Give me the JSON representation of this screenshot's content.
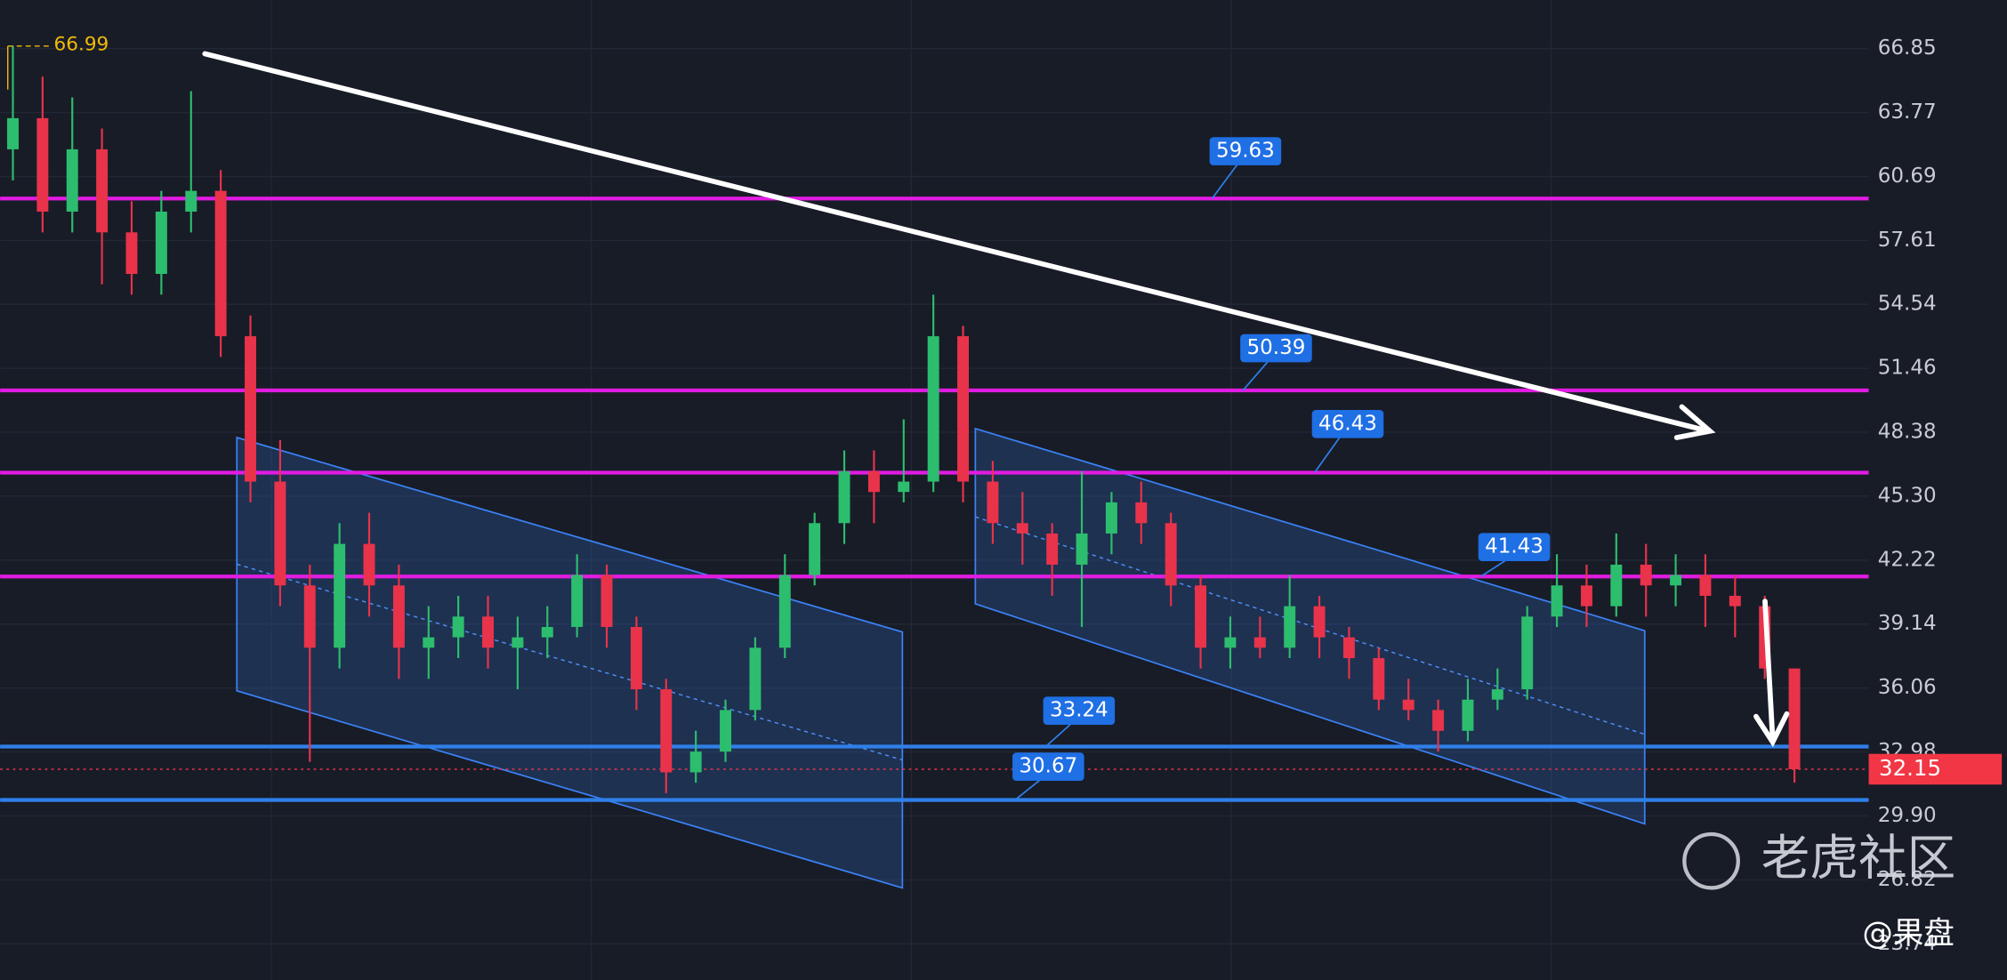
{
  "chart_data": {
    "type": "candlestick",
    "ylim": [
      22.0,
      69.19
    ],
    "yticks": [
      66.85,
      63.77,
      60.69,
      57.61,
      54.54,
      51.46,
      48.38,
      {
        "value": 45.3,
        "label": "45.30"
      },
      42.22,
      39.14,
      36.06,
      32.98,
      {
        "value": 29.9,
        "label": "29.90"
      },
      26.82,
      23.74
    ],
    "grid": true,
    "up_color": "#2dbd6e",
    "down_color": "#e8334a",
    "open": [
      62,
      63.5,
      59,
      62,
      58,
      56,
      59,
      60,
      53,
      46,
      41,
      38,
      43,
      41,
      38,
      38.5,
      39.5,
      38,
      38.5,
      39,
      41.5,
      39,
      36,
      32,
      33,
      35,
      38,
      41.5,
      44,
      46.5,
      45.5,
      46,
      53,
      46,
      44,
      43.5,
      42,
      43.5,
      45,
      44,
      41,
      38,
      38.5,
      38,
      40,
      38.5,
      37.5,
      35.5,
      35,
      34,
      35.5,
      36,
      39.5,
      41,
      40,
      42,
      41,
      41.5,
      40.5,
      40,
      37
    ],
    "high": [
      66.99,
      65.5,
      64.5,
      63,
      59.5,
      60,
      64.8,
      61,
      54,
      48,
      42,
      44,
      44.5,
      42,
      40,
      40.5,
      40.5,
      39.5,
      40,
      42.5,
      42,
      39.5,
      36.5,
      34,
      35.5,
      38.5,
      42.5,
      44.5,
      47.5,
      47.5,
      49,
      55,
      53.5,
      47,
      45.5,
      44,
      46.5,
      45.5,
      46,
      44.5,
      41.5,
      39.5,
      39.5,
      41.5,
      40.5,
      39,
      38,
      36.5,
      35.5,
      36.5,
      37,
      40,
      42.5,
      42,
      43.5,
      43,
      42.5,
      42.5,
      41.5,
      40.5,
      37
    ],
    "low": [
      60.5,
      58,
      58,
      55.5,
      55,
      55,
      58,
      52,
      45,
      40,
      32.5,
      37,
      39.5,
      36.5,
      36.5,
      37.5,
      37,
      36,
      37.5,
      38.5,
      38,
      35,
      31,
      31.5,
      32.5,
      34.5,
      37.5,
      41,
      43,
      44,
      45,
      45.5,
      45,
      43,
      42,
      40.5,
      39,
      42.5,
      43,
      40,
      37,
      37,
      37.5,
      37.5,
      37.5,
      36.5,
      35,
      34.5,
      33,
      33.5,
      35,
      35.5,
      39,
      39,
      39.5,
      39.5,
      40,
      39,
      38.5,
      36.5,
      31.5
    ],
    "close": [
      63.5,
      59,
      62,
      58,
      56,
      59,
      60,
      53,
      46,
      41,
      38,
      43,
      41,
      38,
      38.5,
      39.5,
      38,
      38.5,
      39,
      41.5,
      39,
      36,
      32,
      33,
      35,
      38,
      41.5,
      44,
      46.5,
      45.5,
      46,
      53,
      46,
      44,
      43.5,
      42,
      43.5,
      45,
      44,
      41,
      38,
      38.5,
      38,
      40,
      38.5,
      37.5,
      35.5,
      35,
      34,
      35.5,
      36,
      39.5,
      41,
      40,
      42,
      41,
      41.5,
      40.5,
      40,
      37,
      32.15
    ],
    "levels": [
      {
        "value": 59.63,
        "color": "#e21be2"
      },
      {
        "value": 50.39,
        "color": "#e21be2"
      },
      {
        "value": 46.43,
        "color": "#e21be2"
      },
      {
        "value": 41.43,
        "color": "#e21be2"
      },
      {
        "value": 33.24,
        "color": "#2f7fe8"
      },
      {
        "value": 30.67,
        "color": "#2f7fe8"
      }
    ],
    "last_price": 32.15,
    "watermark": "老虎社区",
    "credit": "@果盘"
  }
}
